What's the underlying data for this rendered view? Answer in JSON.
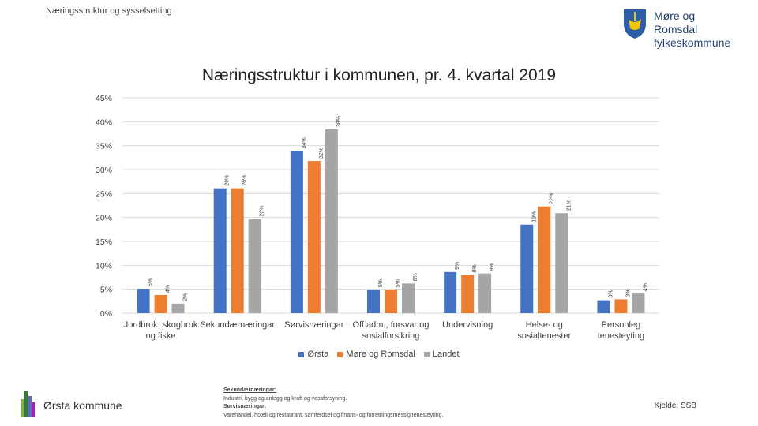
{
  "header": {
    "section_label": "Næringsstruktur og sysselsetting"
  },
  "logo": {
    "line1": "Møre og Romsdal",
    "line2": "fylkeskommune"
  },
  "colors": {
    "orsta": "#4472c4",
    "more_og_romsdal": "#ed7d31",
    "landet": "#a5a5a5",
    "grid": "#d9d9d9"
  },
  "chart_data": {
    "type": "bar",
    "title": "Næringsstruktur i kommunen, pr. 4. kvartal 2019",
    "xlabel": "",
    "ylabel": "",
    "ylim": [
      0,
      45
    ],
    "yticks": [
      0,
      5,
      10,
      15,
      20,
      25,
      30,
      35,
      40,
      45
    ],
    "ytick_labels": [
      "0%",
      "5%",
      "10%",
      "15%",
      "20%",
      "25%",
      "30%",
      "35%",
      "40%",
      "45%"
    ],
    "grid": true,
    "legend_position": "bottom",
    "categories": [
      [
        "Jordbruk, skogbruk",
        "og fiske"
      ],
      [
        "Sekundærnæringar"
      ],
      [
        "Sørvisnæringar"
      ],
      [
        "Off.adm., forsvar og",
        "sosialforsikring"
      ],
      [
        "Undervisning"
      ],
      [
        "Helse- og",
        "sosialtenester"
      ],
      [
        "Personleg",
        "tenesteyting"
      ]
    ],
    "series": [
      {
        "name": "Ørsta",
        "values": [
          5.1,
          26.1,
          33.9,
          4.9,
          8.6,
          18.5,
          2.7
        ],
        "labels": [
          "5%",
          "26%",
          "34%",
          "5%",
          "9%",
          "19%",
          "3%"
        ]
      },
      {
        "name": "Møre og Romsdal",
        "values": [
          3.8,
          26.1,
          31.8,
          4.9,
          8.0,
          22.3,
          2.9
        ],
        "labels": [
          "4%",
          "26%",
          "32%",
          "5%",
          "8%",
          "22%",
          "3%"
        ]
      },
      {
        "name": "Landet",
        "values": [
          2.0,
          19.7,
          38.4,
          6.2,
          8.3,
          20.9,
          4.1
        ],
        "labels": [
          "2%",
          "20%",
          "38%",
          "6%",
          "8%",
          "21%",
          "4%"
        ]
      }
    ]
  },
  "footer": {
    "brand": "Ørsta kommune",
    "note_head1": "Sekundærnæringar:",
    "note_body1": "Industri, bygg og anlegg og kraft og vassforsyning.",
    "note_head2": "Sørvisnæringar:",
    "note_body2": "Varehandel, hotell og restaurant, samferdsel og finans- og forretningsmessig tenesteyting.",
    "source": "Kjelde: SSB"
  }
}
